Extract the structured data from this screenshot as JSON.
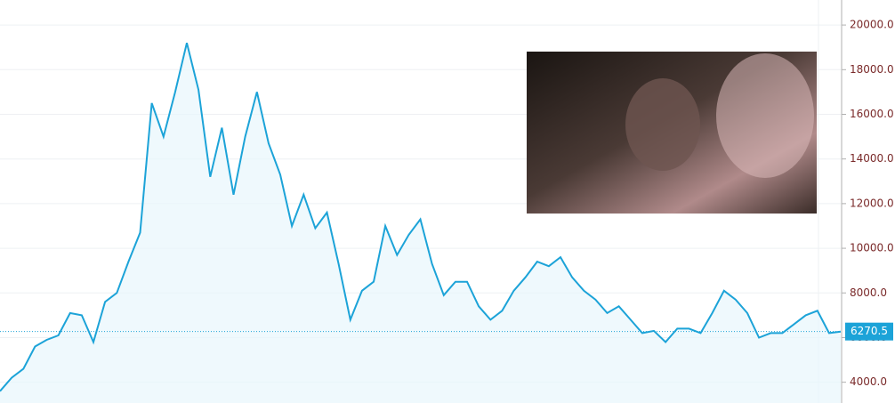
{
  "chart_data": {
    "type": "line",
    "values": [
      3600,
      4200,
      4600,
      5600,
      5900,
      6100,
      7100,
      7000,
      5800,
      7600,
      8000,
      9400,
      10700,
      16500,
      15000,
      17000,
      19200,
      17100,
      13200,
      15400,
      12400,
      15000,
      17000,
      14700,
      13300,
      11000,
      12400,
      10900,
      11600,
      9300,
      6800,
      8100,
      8500,
      11000,
      9700,
      10600,
      11300,
      9300,
      7900,
      8500,
      8500,
      7400,
      6800,
      7200,
      8100,
      8700,
      9400,
      9200,
      9600,
      8700,
      8100,
      7700,
      7100,
      7400,
      6800,
      6200,
      6300,
      5800,
      6400,
      6400,
      6200,
      7100,
      8100,
      7700,
      7100,
      6000,
      6200,
      6200,
      6600,
      7000,
      7200,
      6200,
      6270
    ],
    "color": "#1ca3d8",
    "ylim": [
      3070,
      21120
    ],
    "yticks": [
      {
        "value": 4000,
        "label": "4000.0"
      },
      {
        "value": 6000,
        "label": "6000.0"
      },
      {
        "value": 8000,
        "label": "8000.0"
      },
      {
        "value": 10000,
        "label": "10000.0"
      },
      {
        "value": 12000,
        "label": "12000.0"
      },
      {
        "value": 14000,
        "label": "14000.0"
      },
      {
        "value": 16000,
        "label": "16000.0"
      },
      {
        "value": 18000,
        "label": "18000.0"
      },
      {
        "value": 20000,
        "label": "20000.0"
      }
    ],
    "current_price": 6270.5,
    "grid": true
  }
}
